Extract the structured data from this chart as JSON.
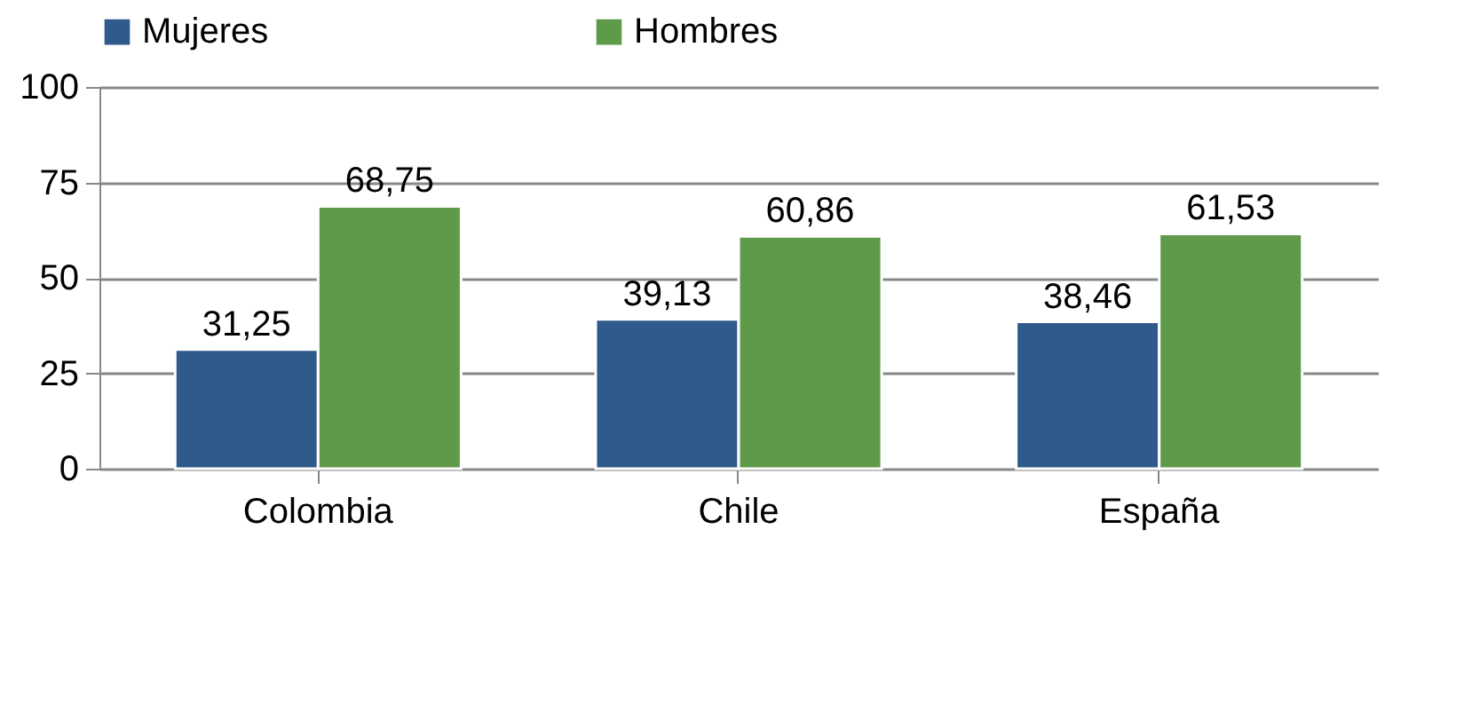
{
  "chart_data": {
    "type": "bar",
    "categories": [
      "Colombia",
      "Chile",
      "España"
    ],
    "series": [
      {
        "name": "Mujeres",
        "color": "#2e5a8c",
        "values": [
          31.25,
          39.13,
          38.46
        ],
        "value_labels": [
          "31,25",
          "39,13",
          "38,46"
        ]
      },
      {
        "name": "Hombres",
        "color": "#5f9a4a",
        "values": [
          68.75,
          60.86,
          61.53
        ],
        "value_labels": [
          "68,75",
          "60,86",
          "61,53"
        ]
      }
    ],
    "ylim": [
      0,
      100
    ],
    "yticks": [
      0,
      25,
      50,
      75,
      100
    ],
    "grid": "y",
    "legend": "top"
  }
}
